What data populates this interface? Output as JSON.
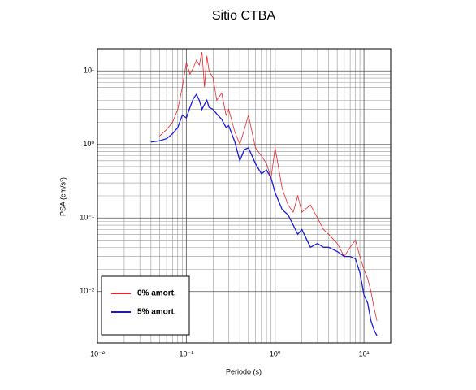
{
  "chart_data": {
    "type": "line",
    "title": "Sitio CTBA",
    "x_label": "Periodo (s)",
    "y_label": "PSA (cm/s²)",
    "x": [
      0.04,
      0.05,
      0.06,
      0.07,
      0.08,
      0.09,
      0.1,
      0.11,
      0.12,
      0.13,
      0.14,
      0.15,
      0.16,
      0.17,
      0.18,
      0.2,
      0.22,
      0.25,
      0.28,
      0.3,
      0.35,
      0.4,
      0.45,
      0.5,
      0.6,
      0.7,
      0.8,
      0.9,
      1.0,
      1.2,
      1.4,
      1.6,
      1.8,
      2,
      2.5,
      3,
      3.5,
      4,
      5,
      6,
      7,
      8,
      9,
      10,
      11,
      12,
      13,
      14
    ],
    "series": [
      {
        "name": "0% amort.",
        "color": "#e8262b",
        "values": [
          null,
          1.3,
          1.6,
          2.0,
          3.0,
          6,
          13,
          9,
          11,
          14,
          12,
          18,
          6,
          16,
          10,
          8,
          4,
          5,
          2.5,
          3,
          1.5,
          1.0,
          1.6,
          2.5,
          0.9,
          0.7,
          0.55,
          0.35,
          0.9,
          0.25,
          0.15,
          0.12,
          0.2,
          0.12,
          0.15,
          0.1,
          0.07,
          0.06,
          0.045,
          0.03,
          0.04,
          0.05,
          0.03,
          0.02,
          0.015,
          0.01,
          0.006,
          0.004
        ]
      },
      {
        "name": "5% amort.",
        "color": "#1a1adc",
        "values": [
          1.08,
          1.12,
          1.2,
          1.4,
          1.7,
          2.5,
          2.3,
          3.2,
          4.2,
          4.8,
          4.0,
          3.0,
          3.5,
          4.0,
          3.2,
          3.0,
          2.6,
          2.2,
          1.7,
          1.8,
          1.1,
          0.6,
          0.85,
          0.9,
          0.55,
          0.4,
          0.45,
          0.35,
          0.22,
          0.13,
          0.11,
          0.08,
          0.06,
          0.07,
          0.04,
          0.045,
          0.04,
          0.04,
          0.035,
          0.03,
          0.03,
          0.028,
          0.018,
          0.009,
          0.007,
          0.004,
          0.003,
          0.0025
        ]
      }
    ],
    "xlim": [
      0.01,
      20
    ],
    "ylim": [
      0.002,
      20
    ],
    "log_x": true,
    "log_y": true,
    "xticks": [
      {
        "value": 0.01,
        "label": "10⁻²"
      },
      {
        "value": 0.1,
        "label": "10⁻¹"
      },
      {
        "value": 1,
        "label": "10⁰"
      },
      {
        "value": 10,
        "label": "10¹"
      }
    ],
    "yticks": [
      {
        "value": 0.01,
        "label": "10⁻²"
      },
      {
        "value": 0.1,
        "label": "10⁻¹"
      },
      {
        "value": 1,
        "label": "10⁰"
      },
      {
        "value": 10,
        "label": "10¹"
      }
    ],
    "grid": true,
    "minor_grid": true,
    "legend_position": "lower left"
  }
}
